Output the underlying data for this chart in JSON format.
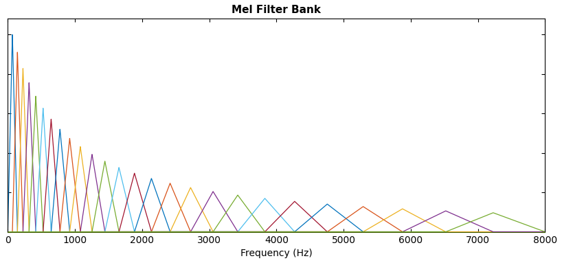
{
  "title": "Mel Filter Bank",
  "xlabel": "Frequency (Hz)",
  "xlim": [
    0,
    8000
  ],
  "num_filters": 26,
  "sample_rate": 16000,
  "num_fft": 512,
  "low_freq": 0,
  "high_freq": 8000,
  "title_fontsize": 11,
  "xlabel_fontsize": 10,
  "colors": [
    "#0072bd",
    "#d95319",
    "#edb120",
    "#7e2f8e",
    "#77ac30",
    "#4dbeee",
    "#a2142f",
    "#0072bd",
    "#d95319",
    "#edb120",
    "#7e2f8e",
    "#77ac30",
    "#4dbeee",
    "#a2142f",
    "#0072bd",
    "#d95319",
    "#edb120",
    "#7e2f8e",
    "#77ac30",
    "#4dbeee",
    "#a2142f",
    "#0072bd",
    "#d95319",
    "#edb120",
    "#7e2f8e",
    "#77ac30"
  ]
}
